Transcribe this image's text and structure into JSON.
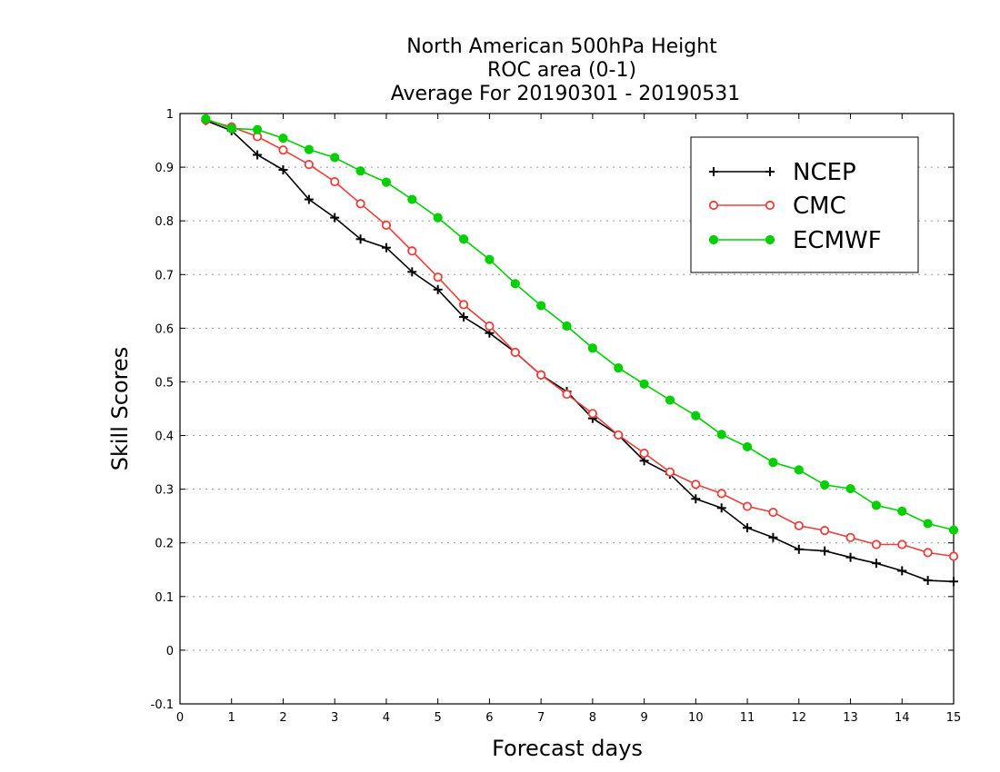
{
  "chart_data": {
    "type": "line",
    "title": [
      "North American 500hPa Height",
      "ROC area (0-1)",
      "Average For 20190301 - 20190531"
    ],
    "xlabel": "Forecast days",
    "ylabel": "Skill Scores",
    "xlim": [
      0,
      15
    ],
    "ylim": [
      -0.1,
      1
    ],
    "xticks": [
      "0",
      "1",
      "2",
      "3",
      "4",
      "5",
      "6",
      "7",
      "8",
      "9",
      "10",
      "11",
      "12",
      "13",
      "14",
      "15"
    ],
    "yticks": [
      "-0.1",
      "0",
      "0.1",
      "0.2",
      "0.3",
      "0.4",
      "0.5",
      "0.6",
      "0.7",
      "0.8",
      "0.9",
      "1"
    ],
    "grid": true,
    "legend_position": "top-right",
    "x": [
      0.5,
      1,
      1.5,
      2,
      2.5,
      3,
      3.5,
      4,
      4.5,
      5,
      5.5,
      6,
      6.5,
      7,
      7.5,
      8,
      8.5,
      9,
      9.5,
      10,
      10.5,
      11,
      11.5,
      12,
      12.5,
      13,
      13.5,
      14,
      14.5,
      15
    ],
    "series": [
      {
        "name": "NCEP",
        "color": "#000000",
        "marker": "plus",
        "values": [
          0.987,
          0.968,
          0.923,
          0.895,
          0.84,
          0.806,
          0.766,
          0.75,
          0.705,
          0.672,
          0.621,
          0.591,
          0.555,
          0.513,
          0.482,
          0.432,
          0.401,
          0.353,
          0.328,
          0.282,
          0.265,
          0.228,
          0.21,
          0.188,
          0.185,
          0.173,
          0.162,
          0.148,
          0.13,
          0.128
        ]
      },
      {
        "name": "CMC",
        "color": "#e8403c",
        "marker": "open-circle",
        "values": [
          0.988,
          0.975,
          0.957,
          0.932,
          0.905,
          0.873,
          0.832,
          0.792,
          0.744,
          0.695,
          0.644,
          0.604,
          0.555,
          0.513,
          0.477,
          0.441,
          0.401,
          0.367,
          0.332,
          0.309,
          0.292,
          0.268,
          0.257,
          0.232,
          0.223,
          0.21,
          0.197,
          0.197,
          0.182,
          0.175
        ]
      },
      {
        "name": "ECMWF",
        "color": "#00d000",
        "marker": "filled-circle",
        "values": [
          0.99,
          0.972,
          0.97,
          0.954,
          0.933,
          0.918,
          0.893,
          0.872,
          0.84,
          0.806,
          0.766,
          0.728,
          0.683,
          0.642,
          0.604,
          0.563,
          0.526,
          0.496,
          0.466,
          0.437,
          0.402,
          0.379,
          0.35,
          0.336,
          0.308,
          0.301,
          0.27,
          0.259,
          0.236,
          0.224
        ]
      }
    ]
  }
}
